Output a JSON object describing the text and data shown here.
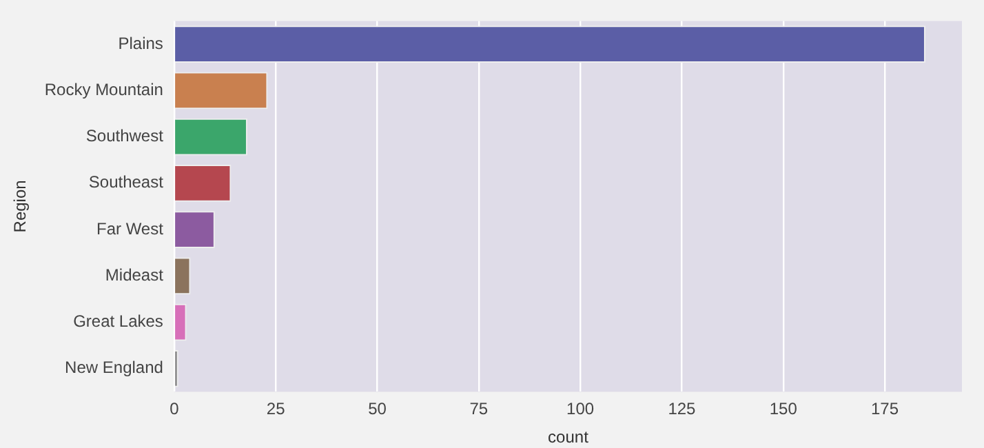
{
  "chart_data": {
    "type": "bar",
    "orientation": "horizontal",
    "xlabel": "count",
    "ylabel": "Region",
    "categories": [
      "Plains",
      "Rocky Mountain",
      "Southwest",
      "Southeast",
      "Far West",
      "Mideast",
      "Great Lakes",
      "New England"
    ],
    "values": [
      185,
      23,
      18,
      14,
      10,
      4,
      3,
      1
    ],
    "colors": [
      "#5b5ea6",
      "#c9804f",
      "#3ba66b",
      "#b5474f",
      "#8c5ba0",
      "#8b735d",
      "#d76fb9",
      "#8c8c8c"
    ],
    "xlim": [
      0,
      194
    ],
    "xticks": [
      0,
      25,
      50,
      75,
      100,
      125,
      150,
      175
    ],
    "grid": "x"
  }
}
